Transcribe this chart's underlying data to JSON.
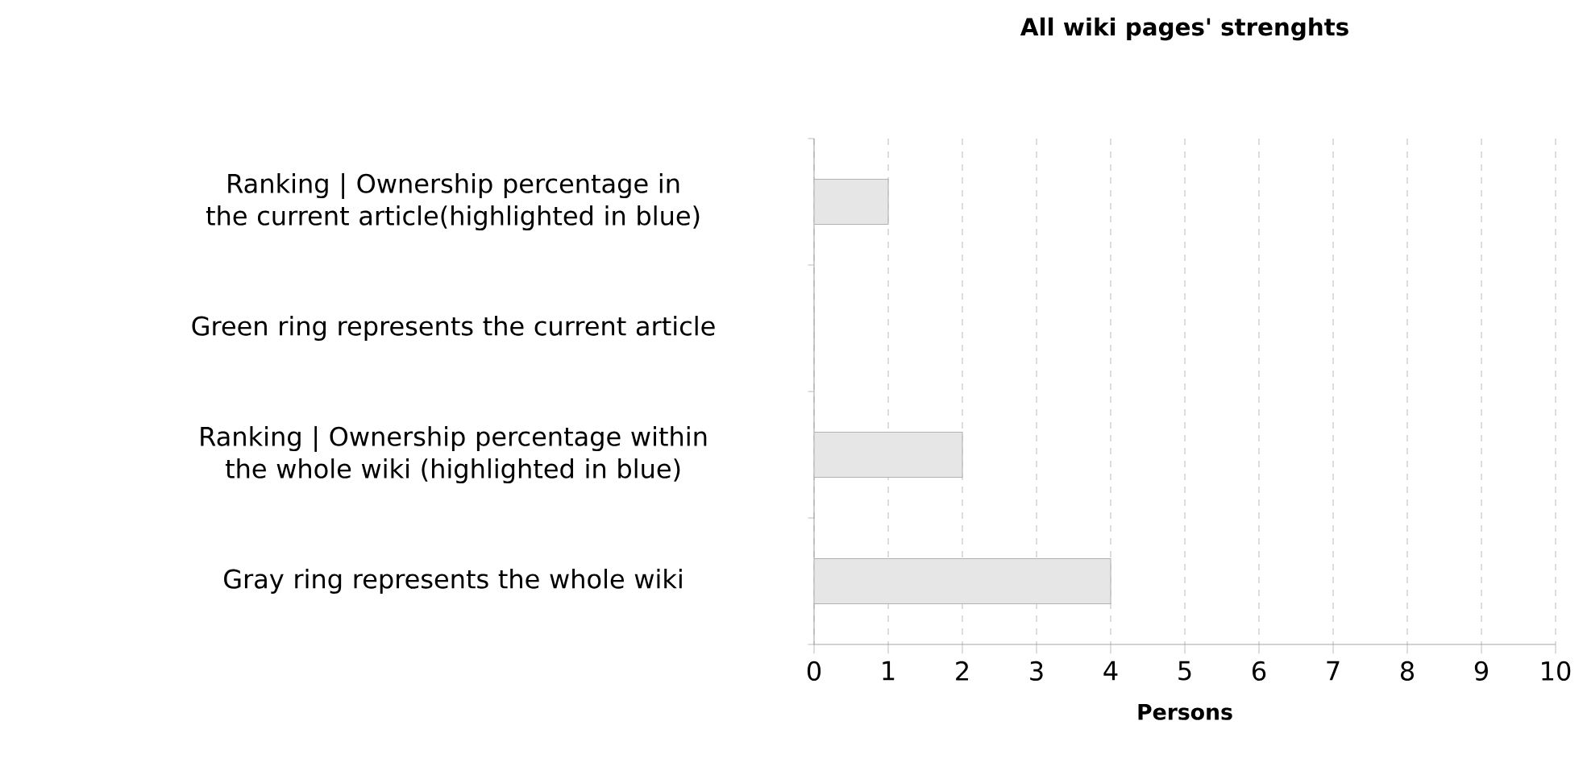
{
  "chart_data": {
    "type": "bar",
    "orientation": "horizontal",
    "title": "All wiki pages' strenghts",
    "xlabel": "Persons",
    "categories": [
      "Ranking | Ownership percentage in the current article(highlighted in blue)",
      "Green ring represents the current article",
      "Ranking | Ownership percentage  within the whole wiki (highlighted in blue)",
      "Gray ring represents the whole wiki"
    ],
    "values": [
      1,
      0,
      2,
      4
    ],
    "color": "#e6e6e6",
    "xlim": [
      0,
      10
    ],
    "xticks": [
      0,
      1,
      2,
      3,
      4,
      5,
      6,
      7,
      8,
      9,
      10
    ],
    "grid": "x"
  }
}
